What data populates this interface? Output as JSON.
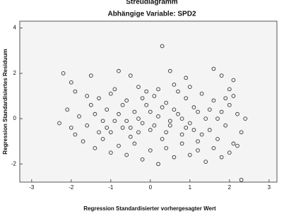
{
  "chart_data": {
    "type": "scatter",
    "title": "Streudiagramm",
    "subtitle": "Abhängige Variable: SPD2",
    "x_label": "Regression Standardisierter vorhergesagter Wert",
    "y_label": "Regression Standardisiertes Residuum",
    "xlim": [
      -3.3,
      3.2
    ],
    "xticks": [
      -3,
      -2,
      -1,
      0,
      1,
      2,
      3
    ],
    "ylim": [
      -2.8,
      4.3
    ],
    "yticks": [
      -2,
      0,
      2,
      4
    ],
    "color": "#333333",
    "x": [
      -2.2,
      -2.0,
      -1.9,
      -1.5,
      -0.8,
      -0.5,
      0.3,
      0.5,
      0.9,
      1.6,
      1.8,
      2.1,
      2.0,
      -2.1,
      -1.8,
      -1.6,
      -1.5,
      -1.3,
      -1.2,
      -1.1,
      -1.0,
      -0.9,
      -0.8,
      -0.7,
      -0.6,
      -0.5,
      -0.4,
      -0.3,
      -0.2,
      -0.1,
      0.0,
      0.1,
      0.2,
      0.3,
      0.4,
      0.5,
      0.6,
      0.7,
      0.8,
      0.9,
      1.0,
      1.1,
      1.2,
      1.3,
      1.4,
      1.5,
      1.6,
      1.7,
      1.8,
      1.9,
      2.0,
      2.1,
      2.2,
      2.3,
      -1.9,
      -1.7,
      -1.4,
      -1.2,
      -1.0,
      -0.8,
      -0.6,
      -0.4,
      -0.2,
      0.0,
      0.2,
      0.4,
      0.6,
      0.8,
      1.0,
      1.2,
      1.4,
      1.6,
      1.8,
      2.0,
      2.2,
      2.3,
      -2.3,
      -0.9,
      -0.3,
      0.1,
      0.6,
      1.2,
      -1.4,
      -0.7,
      0.3,
      0.9,
      1.5,
      -1.1,
      -0.5,
      0.5,
      1.3,
      1.9,
      -0.1,
      0.7,
      -1.6,
      2.1,
      -0.3,
      0.4,
      1.1,
      -1.3,
      0.0,
      -0.6,
      0.8,
      1.7,
      -2.0,
      2.4,
      -0.2,
      0.2,
      1.0,
      -1.0
    ],
    "values": [
      2.0,
      1.6,
      1.2,
      1.9,
      2.1,
      1.9,
      3.2,
      2.1,
      1.8,
      2.2,
      1.9,
      1.7,
      1.3,
      0.4,
      0.1,
      -0.3,
      0.6,
      0.9,
      -0.1,
      0.4,
      -0.6,
      1.3,
      0.2,
      -0.4,
      0.8,
      -0.8,
      0.3,
      1.4,
      -0.2,
      0.6,
      -0.5,
      1.0,
      0.1,
      -0.9,
      0.7,
      -0.3,
      1.5,
      0.2,
      -0.7,
      0.9,
      -0.2,
      0.5,
      -1.0,
      1.1,
      0.0,
      -0.5,
      0.8,
      -0.9,
      0.3,
      -0.3,
      0.6,
      -1.1,
      0.2,
      -0.6,
      -0.7,
      -1.0,
      -1.3,
      -0.9,
      -1.5,
      -1.2,
      -1.6,
      -1.1,
      -1.8,
      -1.4,
      -2.0,
      -1.3,
      -1.7,
      -1.1,
      -1.6,
      -1.4,
      -1.9,
      -1.3,
      -1.7,
      -1.5,
      -1.2,
      -2.7,
      -0.2,
      -0.1,
      0.0,
      -0.3,
      0.4,
      0.3,
      0.2,
      0.6,
      0.5,
      -0.4,
      0.4,
      -0.4,
      -0.4,
      -0.1,
      -0.7,
      0.9,
      1.2,
      1.2,
      1.0,
      1.0,
      -0.6,
      -0.6,
      -0.5,
      -0.6,
      0.3,
      -0.1,
      0.0,
      0.0,
      -0.4,
      0.0,
      0.9,
      1.3,
      1.4,
      1.1
    ]
  }
}
